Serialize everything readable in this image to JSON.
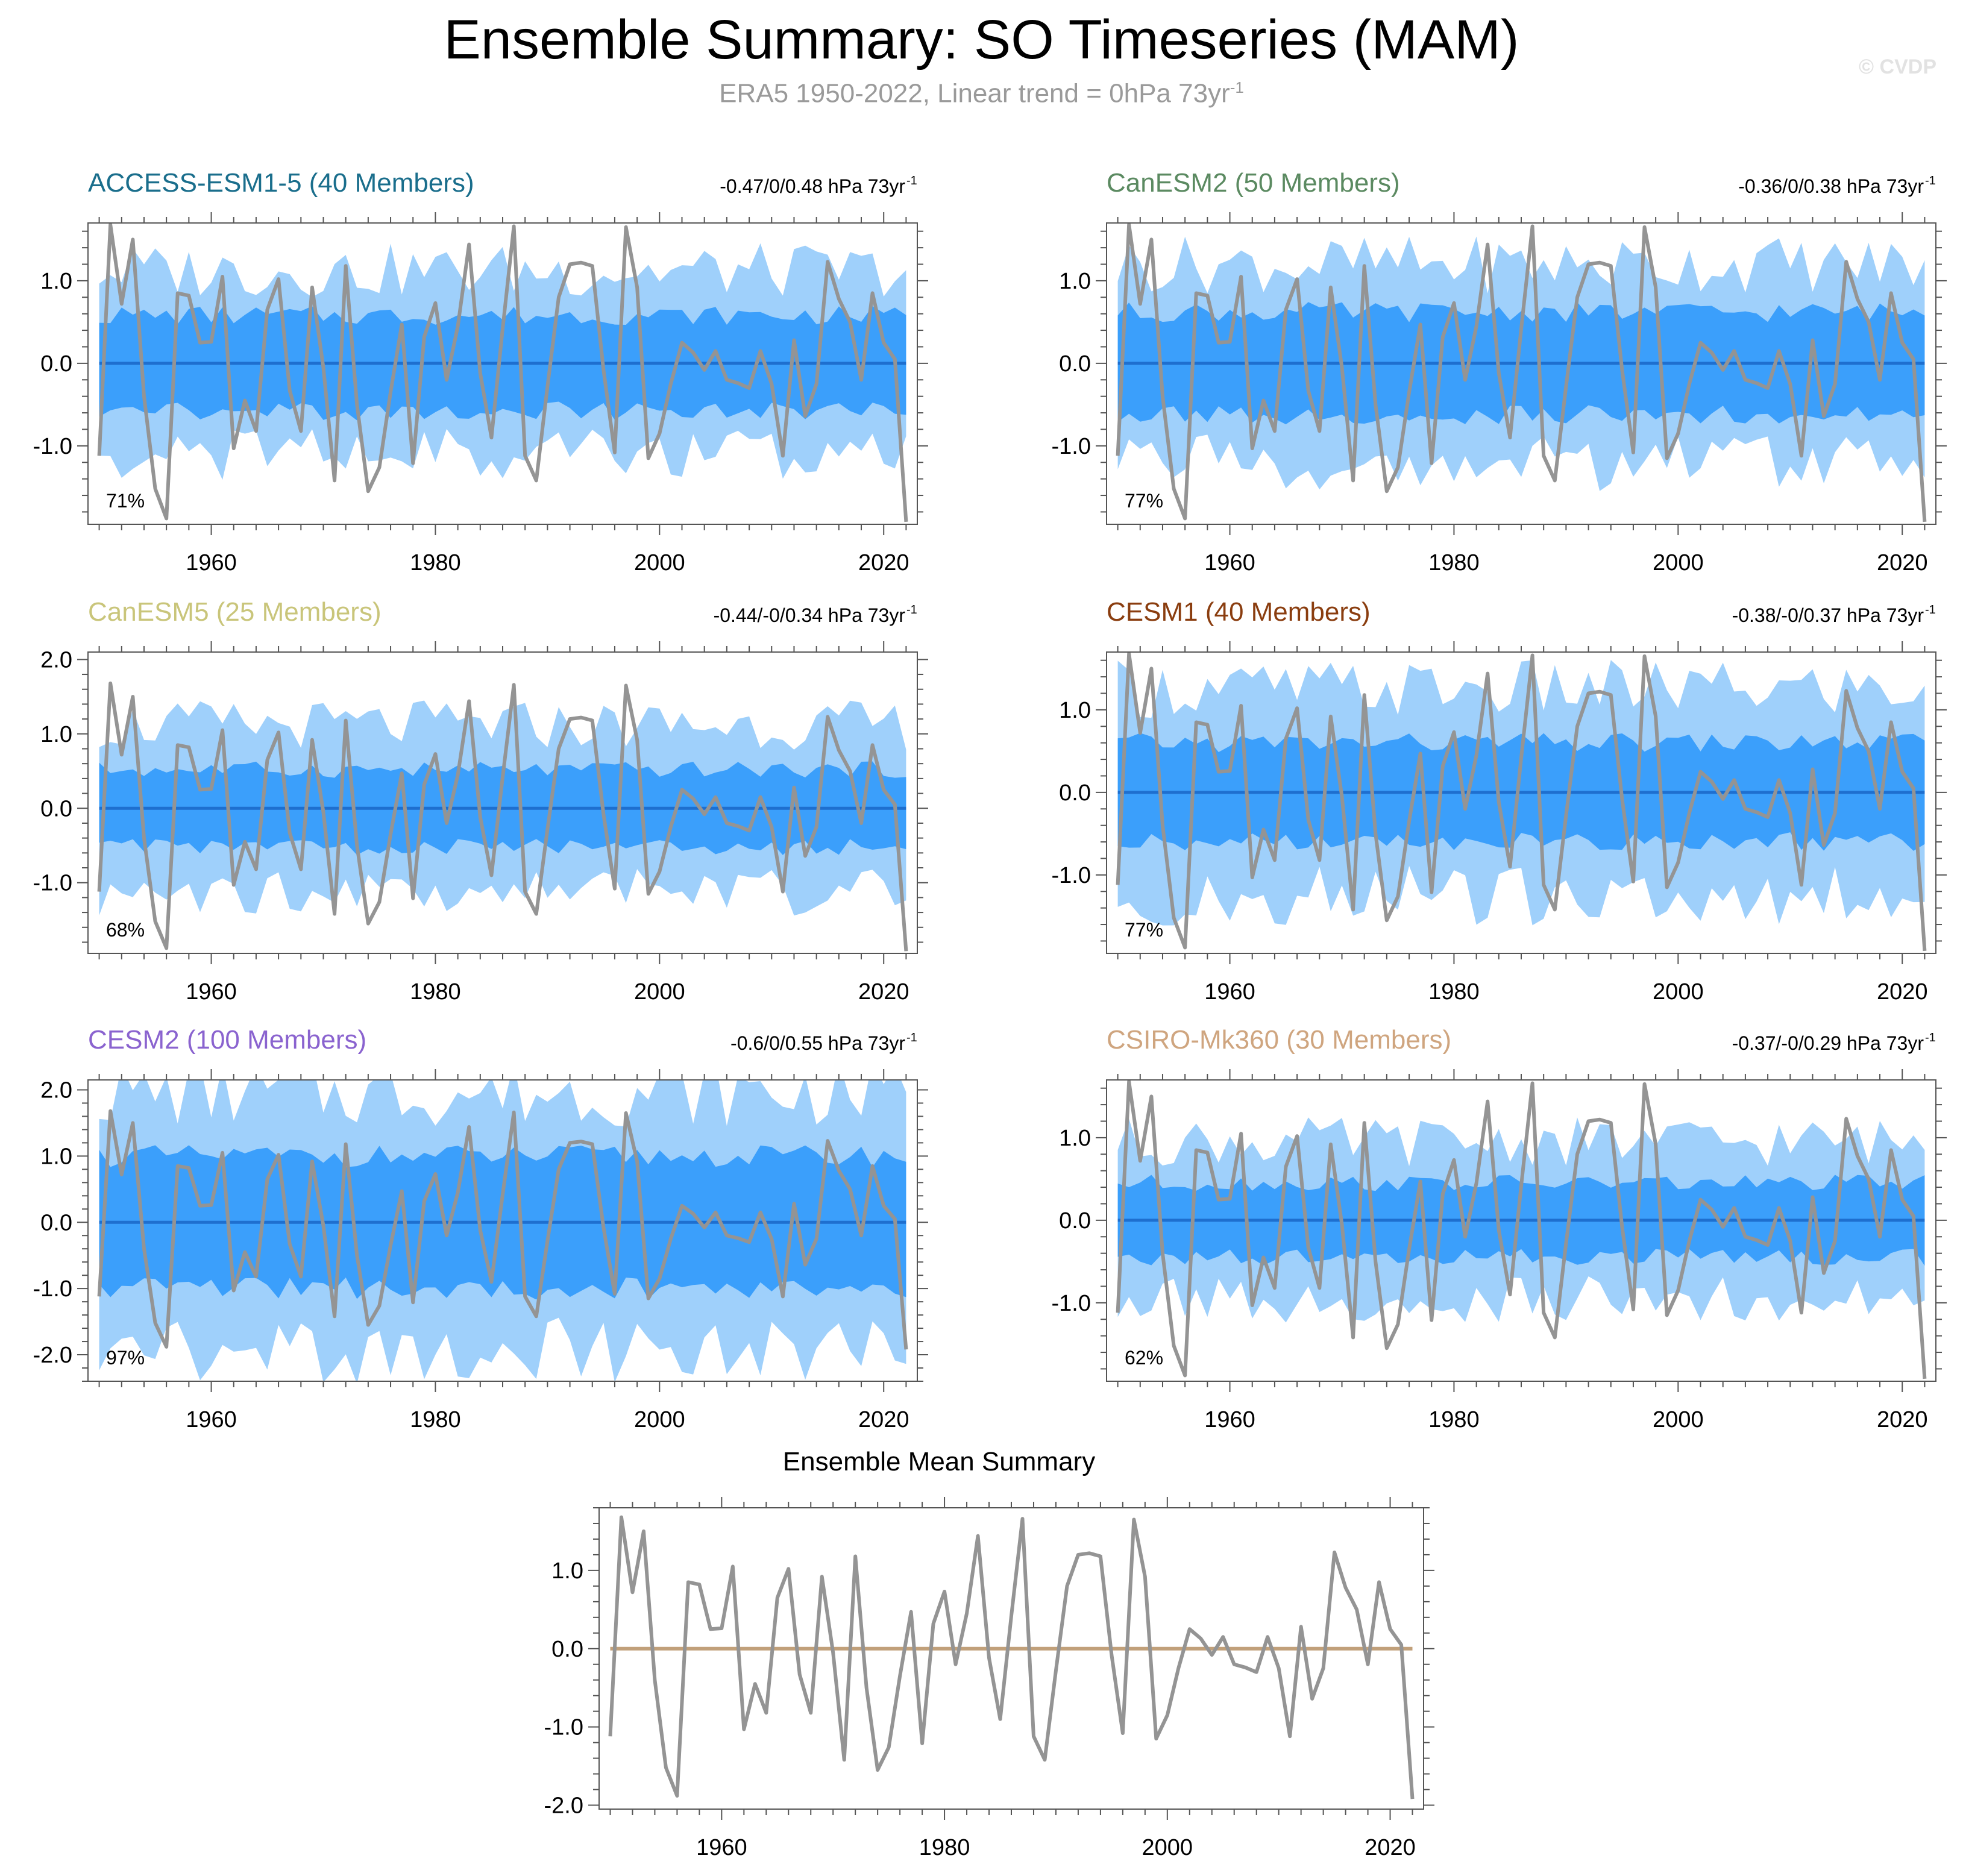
{
  "title": "Ensemble Summary: SO Timeseries (MAM)",
  "subtitle": "ERA5 1950-2022, Linear trend = 0hPa 73yr",
  "subtitle_sup": "-1",
  "watermark": "© CVDP",
  "colors": {
    "outer_band": "#9fd0fb",
    "inner_band": "#3b9ffb",
    "ensemble_mean_line": "#1e6fcf",
    "observation_line": "#949494",
    "summary_mean_line": "#c1a07a"
  },
  "observations_era5": {
    "years_start": 1950,
    "values": [
      -1.12,
      1.68,
      0.72,
      1.5,
      -0.4,
      -1.52,
      -1.88,
      0.85,
      0.82,
      0.25,
      0.26,
      1.05,
      -1.03,
      -0.45,
      -0.82,
      0.65,
      1.02,
      -0.33,
      -0.82,
      0.92,
      -0.05,
      -1.42,
      1.18,
      -0.5,
      -1.55,
      -1.26,
      -0.35,
      0.47,
      -1.21,
      0.32,
      0.73,
      -0.2,
      0.45,
      1.44,
      -0.12,
      -0.9,
      0.42,
      1.66,
      -1.12,
      -1.42,
      -0.28,
      0.8,
      1.2,
      1.22,
      1.18,
      -0.08,
      -1.08,
      1.65,
      0.92,
      -1.15,
      -0.85,
      -0.25,
      0.25,
      0.13,
      -0.08,
      0.15,
      -0.2,
      -0.24,
      -0.3,
      0.15,
      -0.25,
      -1.12,
      0.28,
      -0.64,
      -0.25,
      1.23,
      0.78,
      0.5,
      -0.2,
      0.85,
      0.25,
      0.05,
      -1.92
    ]
  },
  "chart_data": [
    {
      "type": "area",
      "title": "ACCESS-ESM1-5 (40 Members)",
      "title_color": "#1a6e8c",
      "stats": "-0.47/0/0.48 hPa 73yr",
      "stats_sup": "-1",
      "percent": "71%",
      "xlim": [
        1949,
        2023
      ],
      "ylim": [
        -1.95,
        1.7
      ],
      "yticks": [
        1.0,
        0.0,
        -1.0
      ],
      "ytick_labels": [
        "1.0",
        "0.0",
        "-1.0"
      ],
      "xticks": [
        1960,
        1980,
        2000,
        2020
      ],
      "xtick_labels": [
        "1960",
        "1980",
        "2000",
        "2020"
      ],
      "bands": {
        "inner": 0.58,
        "outer": 1.12
      },
      "series": [
        {
          "name": "ERA5",
          "uses": "observations_era5"
        }
      ]
    },
    {
      "type": "area",
      "title": "CanESM2 (50 Members)",
      "title_color": "#5b8a61",
      "stats": "-0.36/0/0.38 hPa 73yr",
      "stats_sup": "-1",
      "percent": "77%",
      "xlim": [
        1949,
        2023
      ],
      "ylim": [
        -1.95,
        1.7
      ],
      "yticks": [
        1.0,
        0.0,
        -1.0
      ],
      "ytick_labels": [
        "1.0",
        "0.0",
        "-1.0"
      ],
      "xticks": [
        1960,
        1980,
        2000,
        2020
      ],
      "xtick_labels": [
        "1960",
        "1980",
        "2000",
        "2020"
      ],
      "bands": {
        "inner": 0.62,
        "outer": 1.2
      },
      "series": [
        {
          "name": "ERA5",
          "uses": "observations_era5"
        }
      ]
    },
    {
      "type": "area",
      "title": "CanESM5 (25 Members)",
      "title_color": "#c9c57a",
      "stats": "-0.44/-0/0.34 hPa 73yr",
      "stats_sup": "-1",
      "percent": "68%",
      "xlim": [
        1949,
        2023
      ],
      "ylim": [
        -1.95,
        2.1
      ],
      "yticks": [
        2.0,
        1.0,
        0.0,
        -1.0
      ],
      "ytick_labels": [
        "2.0",
        "1.0",
        "0.0",
        "-1.0"
      ],
      "xticks": [
        1960,
        1980,
        2000,
        2020
      ],
      "xtick_labels": [
        "1960",
        "1980",
        "2000",
        "2020"
      ],
      "bands": {
        "inner": 0.52,
        "outer": 1.12
      },
      "series": [
        {
          "name": "ERA5",
          "uses": "observations_era5"
        }
      ]
    },
    {
      "type": "area",
      "title": "CESM1 (40 Members)",
      "title_color": "#8a3d0f",
      "stats": "-0.38/-0/0.37 hPa 73yr",
      "stats_sup": "-1",
      "percent": "77%",
      "xlim": [
        1949,
        2023
      ],
      "ylim": [
        -1.95,
        1.7
      ],
      "yticks": [
        1.0,
        0.0,
        -1.0
      ],
      "ytick_labels": [
        "1.0",
        "0.0",
        "-1.0"
      ],
      "xticks": [
        1960,
        1980,
        2000,
        2020
      ],
      "xtick_labels": [
        "1960",
        "1980",
        "2000",
        "2020"
      ],
      "bands": {
        "inner": 0.6,
        "outer": 1.25
      },
      "series": [
        {
          "name": "ERA5",
          "uses": "observations_era5"
        }
      ]
    },
    {
      "type": "area",
      "title": "CESM2 (100 Members)",
      "title_color": "#8a63cf",
      "stats": "-0.6/0/0.55 hPa 73yr",
      "stats_sup": "-1",
      "percent": "97%",
      "xlim": [
        1949,
        2023
      ],
      "ylim": [
        -2.4,
        2.15
      ],
      "yticks": [
        2.0,
        1.0,
        0.0,
        -1.0,
        -2.0
      ],
      "ytick_labels": [
        "2.0",
        "1.0",
        "0.0",
        "-1.0",
        "-2.0"
      ],
      "xticks": [
        1960,
        1980,
        2000,
        2020
      ],
      "xtick_labels": [
        "1960",
        "1980",
        "2000",
        "2020"
      ],
      "bands": {
        "inner": 1.0,
        "outer": 1.95
      },
      "series": [
        {
          "name": "ERA5",
          "uses": "observations_era5"
        }
      ]
    },
    {
      "type": "area",
      "title": "CSIRO-Mk360 (30 Members)",
      "title_color": "#cfa57f",
      "stats": "-0.37/-0/0.29 hPa 73yr",
      "stats_sup": "-1",
      "percent": "62%",
      "xlim": [
        1949,
        2023
      ],
      "ylim": [
        -1.95,
        1.7
      ],
      "yticks": [
        1.0,
        0.0,
        -1.0
      ],
      "ytick_labels": [
        "1.0",
        "0.0",
        "-1.0"
      ],
      "xticks": [
        1960,
        1980,
        2000,
        2020
      ],
      "xtick_labels": [
        "1960",
        "1980",
        "2000",
        "2020"
      ],
      "bands": {
        "inner": 0.45,
        "outer": 0.95
      },
      "series": [
        {
          "name": "ERA5",
          "uses": "observations_era5"
        }
      ]
    },
    {
      "type": "line",
      "title": "Ensemble Mean Summary",
      "title_color": "#000000",
      "stats": "",
      "stats_sup": "",
      "percent": "",
      "xlim": [
        1949,
        2023
      ],
      "ylim": [
        -2.05,
        1.8
      ],
      "yticks": [
        1.0,
        0.0,
        -1.0,
        -2.0
      ],
      "ytick_labels": [
        "1.0",
        "0.0",
        "-1.0",
        "-2.0"
      ],
      "xticks": [
        1960,
        1980,
        2000,
        2020
      ],
      "xtick_labels": [
        "1960",
        "1980",
        "2000",
        "2020"
      ],
      "series": [
        {
          "name": "ERA5",
          "uses": "observations_era5"
        },
        {
          "name": "Ensemble mean",
          "constant": 0.0
        }
      ]
    }
  ]
}
